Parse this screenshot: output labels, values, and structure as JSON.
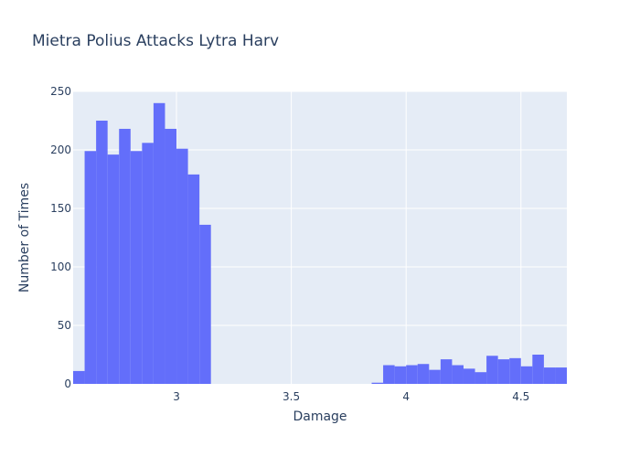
{
  "chart_data": {
    "type": "bar",
    "title": "Mietra Polius Attacks Lytra Harv",
    "xlabel": "Damage",
    "ylabel": "Number of Times",
    "xlim": [
      2.55,
      4.7
    ],
    "ylim": [
      0,
      250
    ],
    "bin_width": 0.05,
    "x_ticks": [
      3,
      3.5,
      4,
      4.5
    ],
    "x_tick_labels": [
      "3",
      "3.5",
      "4",
      "4.5"
    ],
    "y_ticks": [
      0,
      50,
      100,
      150,
      200,
      250
    ],
    "y_tick_labels": [
      "0",
      "50",
      "100",
      "150",
      "200",
      "250"
    ],
    "grid": true,
    "bins": [
      {
        "x0": 2.55,
        "value": 11
      },
      {
        "x0": 2.6,
        "value": 199
      },
      {
        "x0": 2.65,
        "value": 225
      },
      {
        "x0": 2.7,
        "value": 196
      },
      {
        "x0": 2.75,
        "value": 218
      },
      {
        "x0": 2.8,
        "value": 199
      },
      {
        "x0": 2.85,
        "value": 206
      },
      {
        "x0": 2.9,
        "value": 240
      },
      {
        "x0": 2.95,
        "value": 218
      },
      {
        "x0": 3.0,
        "value": 201
      },
      {
        "x0": 3.05,
        "value": 179
      },
      {
        "x0": 3.1,
        "value": 136
      },
      {
        "x0": 3.85,
        "value": 1
      },
      {
        "x0": 3.9,
        "value": 16
      },
      {
        "x0": 3.95,
        "value": 15
      },
      {
        "x0": 4.0,
        "value": 16
      },
      {
        "x0": 4.05,
        "value": 17
      },
      {
        "x0": 4.1,
        "value": 12
      },
      {
        "x0": 4.15,
        "value": 21
      },
      {
        "x0": 4.2,
        "value": 16
      },
      {
        "x0": 4.25,
        "value": 13
      },
      {
        "x0": 4.3,
        "value": 10
      },
      {
        "x0": 4.35,
        "value": 24
      },
      {
        "x0": 4.4,
        "value": 21
      },
      {
        "x0": 4.45,
        "value": 22
      },
      {
        "x0": 4.5,
        "value": 15
      },
      {
        "x0": 4.55,
        "value": 25
      },
      {
        "x0": 4.6,
        "value": 14
      },
      {
        "x0": 4.65,
        "value": 14
      }
    ],
    "colors": {
      "bar": "#636efa",
      "plot_bg": "#e5ecf6",
      "grid": "#ffffff",
      "text": "#2a3f5f"
    }
  }
}
